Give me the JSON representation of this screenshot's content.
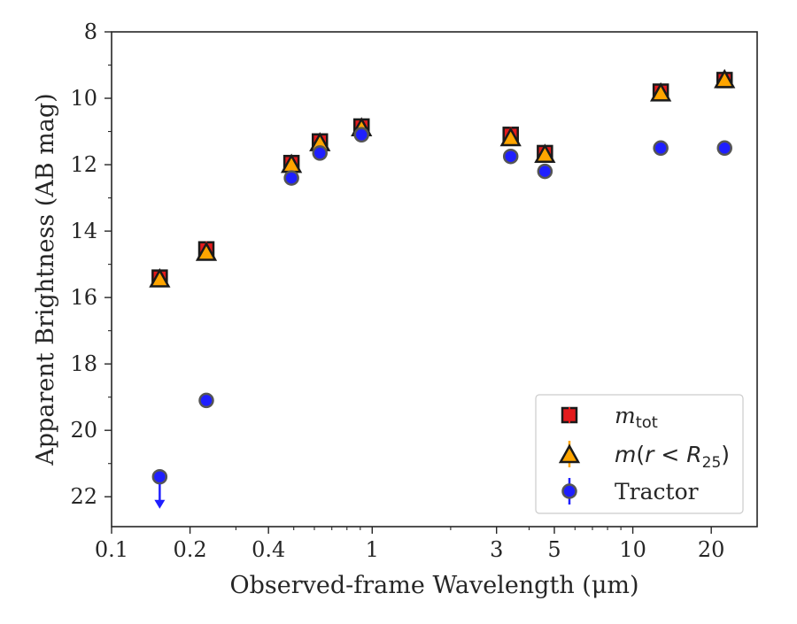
{
  "chart_data": {
    "type": "scatter",
    "xlabel": "Observed-frame Wavelength (μm)",
    "ylabel": "Apparent Brightness (AB mag)",
    "xscale": "log",
    "xlim": [
      0.1,
      30
    ],
    "ylim": [
      22.9,
      8
    ],
    "y_inverted": true,
    "grid": false,
    "legend_position": "lower-right",
    "x_tick_labels": [
      "0.1",
      "0.2",
      "0.4",
      "1",
      "3",
      "5",
      "10",
      "20"
    ],
    "x_tick_values": [
      0.1,
      0.2,
      0.4,
      1,
      3,
      5,
      10,
      20
    ],
    "y_tick_labels": [
      "8",
      "10",
      "12",
      "14",
      "16",
      "18",
      "20",
      "22"
    ],
    "y_tick_values": [
      8,
      10,
      12,
      14,
      16,
      18,
      20,
      22
    ],
    "series": [
      {
        "name": "m_tot",
        "legend_label": "mtot",
        "marker": "square",
        "color": "#e31a1c",
        "x": [
          0.153,
          0.231,
          0.49,
          0.63,
          0.91,
          3.4,
          4.6,
          12.8,
          22.5
        ],
        "y": [
          15.4,
          14.55,
          11.95,
          11.3,
          10.85,
          11.1,
          11.65,
          9.8,
          9.45
        ]
      },
      {
        "name": "m(r<R25)",
        "legend_label": "m(r<R25)",
        "marker": "triangle",
        "color": "#ffa500",
        "x": [
          0.153,
          0.231,
          0.49,
          0.63,
          0.91,
          3.4,
          4.6,
          12.8,
          22.5
        ],
        "y": [
          15.45,
          14.65,
          12.0,
          11.35,
          10.9,
          11.2,
          11.7,
          9.85,
          9.45
        ]
      },
      {
        "name": "Tractor",
        "legend_label": "Tractor",
        "marker": "circle",
        "color": "#1f1fff",
        "x": [
          0.153,
          0.231,
          0.49,
          0.63,
          0.91,
          3.4,
          4.6,
          12.8,
          22.5
        ],
        "y": [
          21.4,
          19.1,
          12.4,
          11.65,
          11.1,
          11.75,
          12.2,
          11.5,
          11.5
        ],
        "upper_limit": [
          true,
          false,
          false,
          false,
          false,
          false,
          false,
          false,
          false
        ]
      }
    ]
  }
}
